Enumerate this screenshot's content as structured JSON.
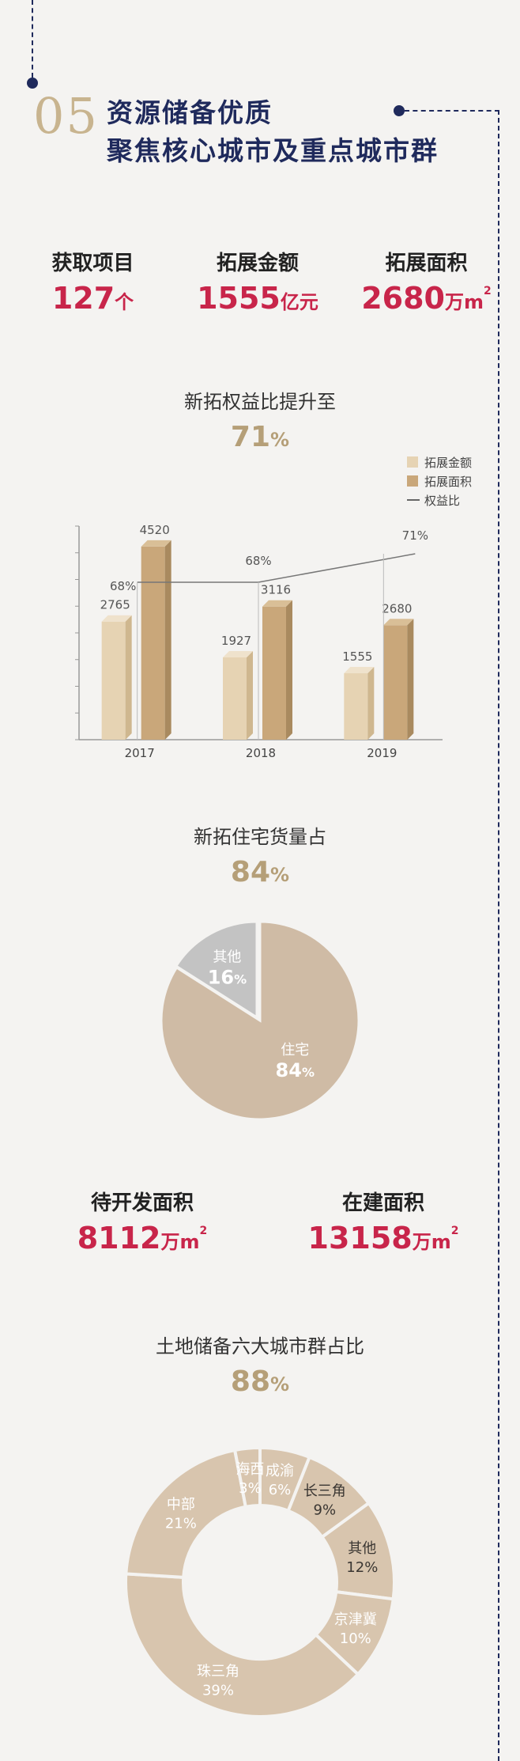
{
  "section": {
    "number": "05",
    "title_line1": "资源储备优质",
    "title_line2": "聚焦核心城市及重点城市群"
  },
  "stats_top": [
    {
      "label": "获取项目",
      "value": "127",
      "unit": "个",
      "sup": ""
    },
    {
      "label": "拓展金额",
      "value": "1555",
      "unit": "亿元",
      "sup": ""
    },
    {
      "label": "拓展面积",
      "value": "2680",
      "unit": "万m",
      "sup": "2"
    }
  ],
  "equity": {
    "title": "新拓权益比提升至",
    "value": "71",
    "pct": "%"
  },
  "legend": {
    "amount": "拓展金额",
    "area": "拓展面积",
    "ratio": "权益比"
  },
  "chart_data": [
    {
      "type": "bar",
      "categories": [
        "2017",
        "2018",
        "2019"
      ],
      "series": [
        {
          "name": "拓展金额",
          "values": [
            2765,
            1927,
            1555
          ]
        },
        {
          "name": "拓展面积",
          "values": [
            4520,
            3116,
            2680
          ]
        }
      ],
      "line_series": {
        "name": "权益比",
        "values": [
          "68%",
          "68%",
          "71%"
        ],
        "numeric": [
          68,
          68,
          71
        ]
      },
      "ylim": [
        0,
        5000
      ],
      "legend_position": "top-right",
      "colors": {
        "amount": "#e6d3b3",
        "area": "#c9a77a",
        "line": "#777777"
      }
    },
    {
      "type": "pie",
      "title": "新拓住宅货量占",
      "labels": [
        "住宅",
        "其他"
      ],
      "values": [
        84,
        16
      ],
      "display": [
        "84",
        "16"
      ],
      "colors": [
        "#cfbba5",
        "#c3c3c3"
      ]
    },
    {
      "type": "pie",
      "title": "土地储备六大城市群占比",
      "donut": true,
      "labels": [
        "成渝",
        "长三角",
        "其他",
        "京津冀",
        "珠三角",
        "中部",
        "海西"
      ],
      "values": [
        6,
        9,
        12,
        10,
        39,
        21,
        3
      ],
      "display": [
        "6%",
        "9%",
        "12%",
        "10%",
        "39%",
        "21%",
        "3%"
      ],
      "color": "#d8c5ae"
    }
  ],
  "residential": {
    "title": "新拓住宅货量占",
    "value": "84",
    "pct": "%"
  },
  "stats_mid": [
    {
      "label": "待开发面积",
      "value": "8112",
      "unit": "万m",
      "sup": "2"
    },
    {
      "label": "在建面积",
      "value": "13158",
      "unit": "万m",
      "sup": "2"
    }
  ],
  "land": {
    "title": "土地储备六大城市群占比",
    "value": "88",
    "pct": "%"
  }
}
